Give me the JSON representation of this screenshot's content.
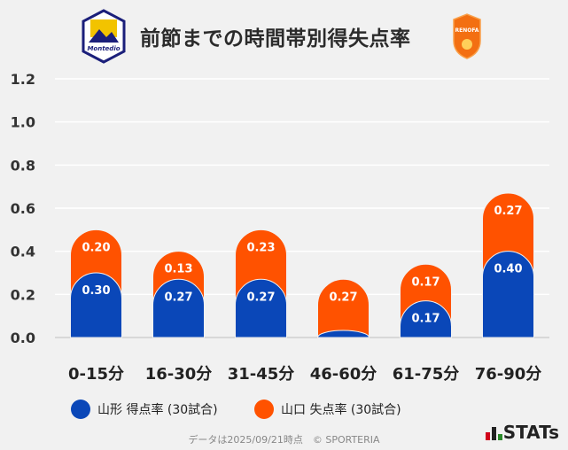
{
  "title": "前節までの時間帯別得失点率",
  "logos": {
    "home": "Montedio YAMAGATA",
    "away": "RENOFA YAMAGUCHI FC"
  },
  "chart_data": {
    "type": "bar",
    "stacked": true,
    "categories": [
      "0-15分",
      "16-30分",
      "31-45分",
      "46-60分",
      "61-75分",
      "76-90分"
    ],
    "series": [
      {
        "name": "山形 得点率 (30試合)",
        "color": "#0a47b8",
        "values": [
          0.3,
          0.27,
          0.27,
          0.0,
          0.17,
          0.4
        ],
        "labels": [
          "0.30",
          "0.27",
          "0.27",
          "",
          "0.17",
          "0.40"
        ]
      },
      {
        "name": "山口 失点率 (30試合)",
        "color": "#ff5200",
        "values": [
          0.2,
          0.13,
          0.23,
          0.27,
          0.17,
          0.27
        ],
        "labels": [
          "0.20",
          "0.13",
          "0.23",
          "0.27",
          "0.17",
          "0.27"
        ]
      }
    ],
    "ylim": [
      0,
      1.2
    ],
    "yticks": [
      "0.0",
      "0.2",
      "0.4",
      "0.6",
      "0.8",
      "1.0",
      "1.2"
    ],
    "grid": true,
    "legend": "bottom"
  },
  "footer": "データは2025/09/21時点　© SPORTERIA",
  "brand": "STATs"
}
